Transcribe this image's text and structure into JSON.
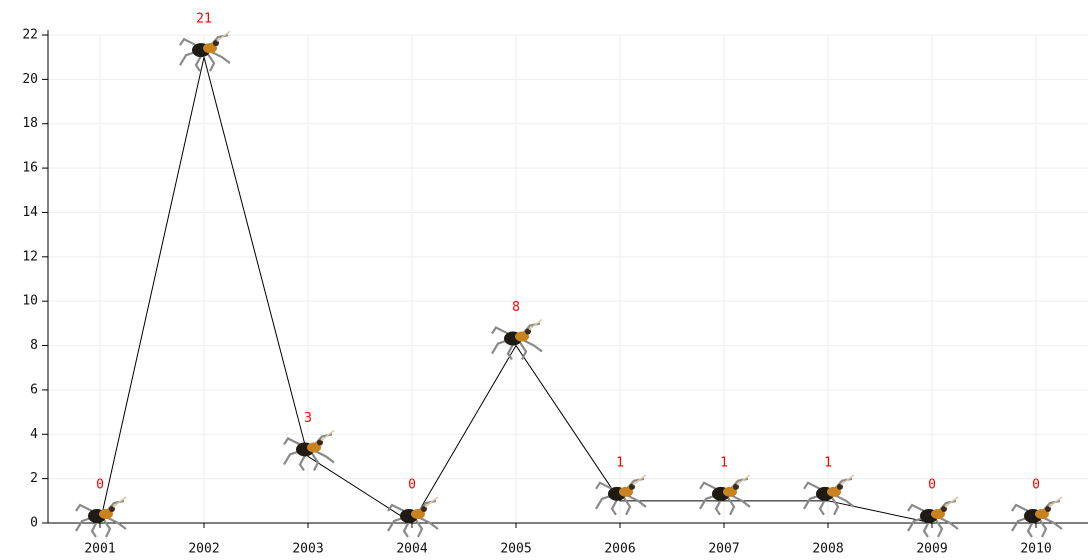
{
  "chart_data": {
    "type": "line",
    "categories": [
      "2001",
      "2002",
      "2003",
      "2004",
      "2005",
      "2006",
      "2007",
      "2008",
      "2009",
      "2010"
    ],
    "values": [
      0,
      21,
      3,
      0,
      8,
      1,
      1,
      1,
      0,
      0
    ],
    "color": "#000000",
    "label_color": "#ff0000",
    "ylim": [
      0,
      22
    ],
    "yticks": [
      0,
      2,
      4,
      6,
      8,
      10,
      12,
      14,
      16,
      18,
      20,
      22
    ],
    "grid": true
  }
}
